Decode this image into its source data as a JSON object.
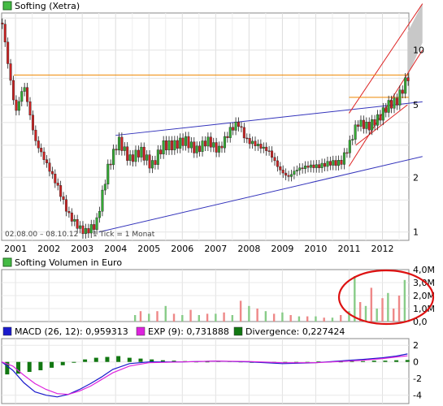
{
  "chart_data": [
    {
      "type": "line",
      "title": "Softing (Xetra)",
      "legend_color": "#33aa33",
      "date_range": "02.08.00 – 08.10.12",
      "tick_note": "1 Tick = 1 Monat",
      "x_ticks": [
        "2001",
        "2002",
        "2003",
        "2004",
        "2005",
        "2006",
        "2007",
        "2008",
        "2009",
        "2010",
        "2011",
        "2012"
      ],
      "y_scale": "log",
      "y_ticks": [
        1,
        2,
        5,
        10
      ],
      "ylim": [
        0.9,
        16
      ],
      "series": [
        {
          "name": "Softing (Xetra)",
          "dates": [
            "2000-08",
            "2000-10",
            "2001-01",
            "2001-04",
            "2001-08",
            "2001-12",
            "2002-04",
            "2002-08",
            "2002-12",
            "2003-02",
            "2003-06",
            "2003-10",
            "2004-02",
            "2004-06",
            "2004-10",
            "2005-02",
            "2005-06",
            "2005-10",
            "2006-02",
            "2006-06",
            "2006-10",
            "2007-02",
            "2007-06",
            "2007-09",
            "2007-12",
            "2008-04",
            "2008-08",
            "2008-12",
            "2009-03",
            "2009-06",
            "2009-10",
            "2010-02",
            "2010-06",
            "2010-10",
            "2011-01",
            "2011-04",
            "2011-08",
            "2011-12",
            "2012-03",
            "2012-06",
            "2012-09",
            "2012-10"
          ],
          "values": [
            15.0,
            9.0,
            4.5,
            6.5,
            3.2,
            2.4,
            1.8,
            1.25,
            1.05,
            1.0,
            1.1,
            2.2,
            3.2,
            2.5,
            2.8,
            2.3,
            3.0,
            3.0,
            3.2,
            2.8,
            3.2,
            2.8,
            3.6,
            4.0,
            3.2,
            3.0,
            2.8,
            2.2,
            2.0,
            2.2,
            2.3,
            2.3,
            2.4,
            2.4,
            3.0,
            4.0,
            3.8,
            4.3,
            5.0,
            5.2,
            6.5,
            7.2
          ]
        }
      ],
      "horizontal_lines": [
        {
          "value": 7.3,
          "color": "#ee8800"
        },
        {
          "value": 5.5,
          "color": "#ee8800"
        }
      ]
    },
    {
      "type": "bar",
      "title": "Softing Volumen in Euro",
      "legend_color": "#33aa33",
      "y_ticks": [
        "0,0",
        "1,0M",
        "2,0M",
        "3,0M",
        "4,0M"
      ],
      "ylim": [
        0,
        4.0
      ],
      "unit": "M",
      "dates": [
        "2004-08",
        "2004-10",
        "2005-01",
        "2005-04",
        "2005-07",
        "2005-10",
        "2006-01",
        "2006-04",
        "2006-07",
        "2006-10",
        "2007-01",
        "2007-04",
        "2007-07",
        "2007-10",
        "2008-01",
        "2008-04",
        "2008-07",
        "2008-10",
        "2009-01",
        "2009-04",
        "2009-07",
        "2009-10",
        "2010-01",
        "2010-04",
        "2010-07",
        "2010-10",
        "2011-01",
        "2011-03",
        "2011-05",
        "2011-07",
        "2011-09",
        "2011-11",
        "2012-01",
        "2012-03",
        "2012-05",
        "2012-07",
        "2012-09"
      ],
      "values": [
        0.5,
        0.8,
        0.6,
        0.8,
        1.2,
        0.6,
        0.5,
        0.9,
        0.5,
        0.6,
        0.6,
        0.7,
        0.5,
        1.6,
        1.2,
        1.0,
        0.8,
        0.6,
        0.7,
        0.5,
        0.4,
        0.4,
        0.4,
        0.3,
        0.3,
        0.5,
        0.8,
        3.5,
        1.5,
        1.2,
        2.6,
        1.0,
        1.8,
        2.2,
        1.0,
        2.0,
        3.2
      ],
      "colors": [
        "#88cc88",
        "#ee8888",
        "#88cc88",
        "#ee8888",
        "#88cc88",
        "#ee8888",
        "#88cc88",
        "#ee8888",
        "#88cc88",
        "#ee8888",
        "#88cc88",
        "#ee8888",
        "#88cc88",
        "#ee8888",
        "#88cc88",
        "#ee8888",
        "#88cc88",
        "#ee8888",
        "#88cc88",
        "#ee8888",
        "#88cc88",
        "#ee8888",
        "#88cc88",
        "#ee8888",
        "#88cc88",
        "#ee8888",
        "#88cc88",
        "#88cc88",
        "#ee8888",
        "#88cc88",
        "#ee8888",
        "#88cc88",
        "#ee8888",
        "#88cc88",
        "#ee8888",
        "#ee8888",
        "#88cc88"
      ]
    },
    {
      "type": "line",
      "y_ticks": [
        -4,
        -2,
        0,
        2
      ],
      "ylim": [
        -5,
        2.8
      ],
      "legend": [
        {
          "label": "MACD (26, 12): 0,959313",
          "color": "#1a1acc"
        },
        {
          "label": "EXP (9): 0,731888",
          "color": "#dd22dd"
        },
        {
          "label": "Divergence: 0,227424",
          "color": "#117711"
        }
      ],
      "series": [
        {
          "name": "MACD (26, 12): 0,959313",
          "dates": [
            "2000-08",
            "2000-12",
            "2001-04",
            "2001-08",
            "2001-12",
            "2002-04",
            "2002-08",
            "2002-12",
            "2003-04",
            "2003-08",
            "2003-12",
            "2004-06",
            "2005-01",
            "2006-01",
            "2007-01",
            "2008-01",
            "2009-01",
            "2010-01",
            "2011-01",
            "2011-06",
            "2012-01",
            "2012-06",
            "2012-10"
          ],
          "values": [
            0.0,
            -1.0,
            -2.5,
            -3.6,
            -4.0,
            -4.2,
            -3.9,
            -3.3,
            -2.6,
            -1.8,
            -0.9,
            -0.2,
            0.0,
            0.0,
            0.1,
            0.0,
            -0.2,
            -0.1,
            0.2,
            0.3,
            0.5,
            0.7,
            0.96
          ]
        },
        {
          "name": "EXP (9): 0,731888",
          "dates": [
            "2000-08",
            "2000-12",
            "2001-04",
            "2001-08",
            "2001-12",
            "2002-04",
            "2002-08",
            "2002-12",
            "2003-04",
            "2003-08",
            "2003-12",
            "2004-06",
            "2005-01",
            "2006-01",
            "2007-01",
            "2008-01",
            "2009-01",
            "2010-01",
            "2011-01",
            "2011-06",
            "2012-01",
            "2012-06",
            "2012-10"
          ],
          "values": [
            0.0,
            -0.5,
            -1.6,
            -2.6,
            -3.3,
            -3.8,
            -3.9,
            -3.5,
            -2.9,
            -2.1,
            -1.3,
            -0.5,
            -0.1,
            0.0,
            0.1,
            0.05,
            -0.1,
            -0.1,
            0.1,
            0.2,
            0.4,
            0.6,
            0.73
          ]
        }
      ],
      "divergence": {
        "dates": [
          "2000-10",
          "2001-02",
          "2001-06",
          "2001-10",
          "2002-02",
          "2002-06",
          "2002-10",
          "2003-02",
          "2003-06",
          "2003-10",
          "2004-02",
          "2004-06",
          "2004-10",
          "2005-02",
          "2005-06",
          "2005-10",
          "2006-02",
          "2006-06",
          "2006-10",
          "2007-02",
          "2007-06",
          "2007-10",
          "2008-02",
          "2008-06",
          "2008-10",
          "2009-02",
          "2009-06",
          "2009-10",
          "2010-02",
          "2010-06",
          "2010-10",
          "2011-02",
          "2011-06",
          "2011-10",
          "2012-02",
          "2012-06",
          "2012-10"
        ],
        "values": [
          -1.5,
          -1.4,
          -1.2,
          -1.0,
          -0.7,
          -0.4,
          -0.1,
          0.3,
          0.5,
          0.6,
          0.7,
          0.5,
          0.4,
          0.3,
          0.2,
          0.15,
          0.1,
          0.05,
          0.05,
          0.1,
          0.1,
          0.05,
          -0.05,
          -0.1,
          -0.15,
          -0.1,
          -0.05,
          0.0,
          0.05,
          0.05,
          0.05,
          0.1,
          0.1,
          0.15,
          0.15,
          0.2,
          0.23
        ]
      }
    }
  ]
}
